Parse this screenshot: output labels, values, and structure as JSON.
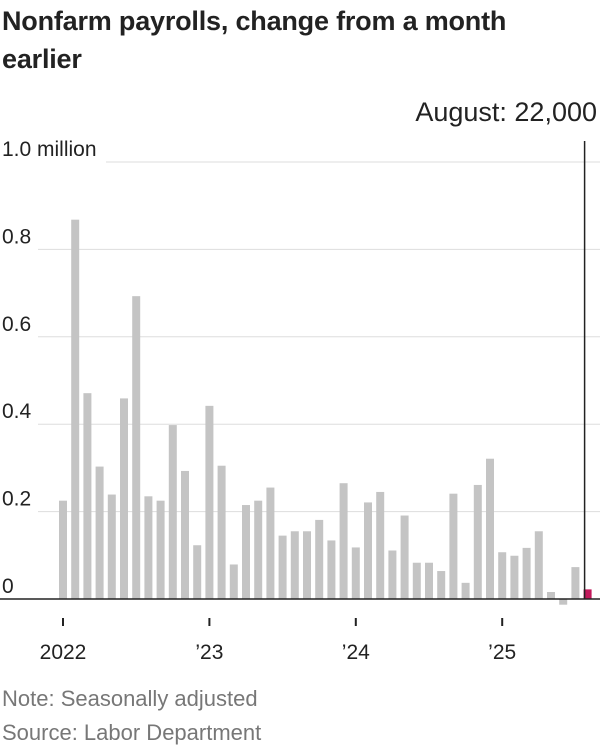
{
  "title": "Nonfarm payrolls, change from a month earlier",
  "annotation": "August: 22,000",
  "note": "Note: Seasonally adjusted",
  "source": "Source: Labor Department",
  "colors": {
    "bar": "#c4c4c4",
    "highlight": "#c2185b",
    "grid": "#dddddd",
    "axis": "#222222",
    "text": "#222222",
    "muted": "#777777"
  },
  "chart_data": {
    "type": "bar",
    "title": "Nonfarm payrolls, change from a month earlier",
    "xlabel": "",
    "ylabel": "",
    "ylim": [
      0,
      1.0
    ],
    "y_ticks": [
      {
        "value": 1.0,
        "label": "1.0 million"
      },
      {
        "value": 0.8,
        "label": "0.8"
      },
      {
        "value": 0.6,
        "label": "0.6"
      },
      {
        "value": 0.4,
        "label": "0.4"
      },
      {
        "value": 0.2,
        "label": "0.2"
      },
      {
        "value": 0,
        "label": "0"
      }
    ],
    "x_ticks": [
      {
        "month_index": 0,
        "label": "2022"
      },
      {
        "month_index": 12,
        "label": "’23"
      },
      {
        "month_index": 24,
        "label": "’24"
      },
      {
        "month_index": 36,
        "label": "’25"
      }
    ],
    "highlight_index": 43,
    "months": [
      "2022-01",
      "2022-02",
      "2022-03",
      "2022-04",
      "2022-05",
      "2022-06",
      "2022-07",
      "2022-08",
      "2022-09",
      "2022-10",
      "2022-11",
      "2022-12",
      "2023-01",
      "2023-02",
      "2023-03",
      "2023-04",
      "2023-05",
      "2023-06",
      "2023-07",
      "2023-08",
      "2023-09",
      "2023-10",
      "2023-11",
      "2023-12",
      "2024-01",
      "2024-02",
      "2024-03",
      "2024-04",
      "2024-05",
      "2024-06",
      "2024-07",
      "2024-08",
      "2024-09",
      "2024-10",
      "2024-11",
      "2024-12",
      "2025-01",
      "2025-02",
      "2025-03",
      "2025-04",
      "2025-05",
      "2025-06",
      "2025-07",
      "2025-08"
    ],
    "values": [
      0.225,
      0.868,
      0.471,
      0.303,
      0.239,
      0.459,
      0.693,
      0.235,
      0.225,
      0.398,
      0.293,
      0.123,
      0.442,
      0.305,
      0.079,
      0.215,
      0.225,
      0.255,
      0.145,
      0.155,
      0.155,
      0.181,
      0.134,
      0.265,
      0.118,
      0.221,
      0.245,
      0.111,
      0.191,
      0.083,
      0.083,
      0.064,
      0.241,
      0.037,
      0.261,
      0.321,
      0.107,
      0.099,
      0.117,
      0.155,
      0.016,
      -0.013,
      0.073,
      0.022
    ]
  }
}
